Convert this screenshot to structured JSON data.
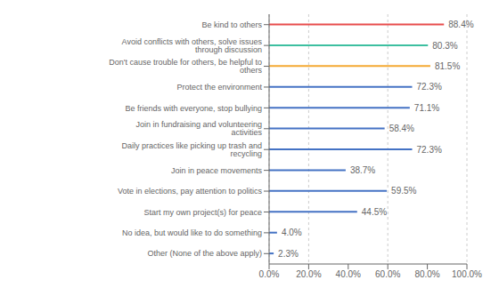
{
  "chart_data": {
    "type": "bar",
    "orientation": "horizontal",
    "categories": [
      "Other (None of the above apply)",
      "No idea, but would like to do something",
      "Start my own project(s) for peace",
      "Vote in elections, pay attention to politics",
      "Join in peace movements",
      "Daily practices like picking up trash and recycling",
      "Join in fundraising and volunteering activities",
      "Be friends with everyone, stop bullying",
      "Protect the environment",
      "Don't cause trouble for others, be helpful to others",
      "Avoid conflicts with others, solve issues through discussion",
      "Be kind to others"
    ],
    "values": [
      2.3,
      4.0,
      44.5,
      59.5,
      38.7,
      72.3,
      58.4,
      71.1,
      72.3,
      81.5,
      80.3,
      88.4
    ],
    "value_labels": [
      "2.3%",
      "4.0%",
      "44.5%",
      "59.5%",
      "38.7%",
      "72.3%",
      "58.4%",
      "71.1%",
      "72.3%",
      "81.5%",
      "80.3%",
      "88.4%"
    ],
    "colors": [
      "#4472c4",
      "#4472c4",
      "#4472c4",
      "#4472c4",
      "#4472c4",
      "#4472c4",
      "#4472c4",
      "#4472c4",
      "#4472c4",
      "#f4a832",
      "#3dbfa0",
      "#e84c4c"
    ],
    "xlim": [
      0,
      100
    ],
    "xticks": [
      {
        "value": 0,
        "label": "0.0%"
      },
      {
        "value": 20,
        "label": "20.0%"
      },
      {
        "value": 40,
        "label": "40.0%"
      },
      {
        "value": 60,
        "label": "60.0%"
      },
      {
        "value": 80,
        "label": "80.0%"
      },
      {
        "value": 100,
        "label": "100.0%"
      }
    ],
    "grid": true,
    "data_labels": true
  }
}
